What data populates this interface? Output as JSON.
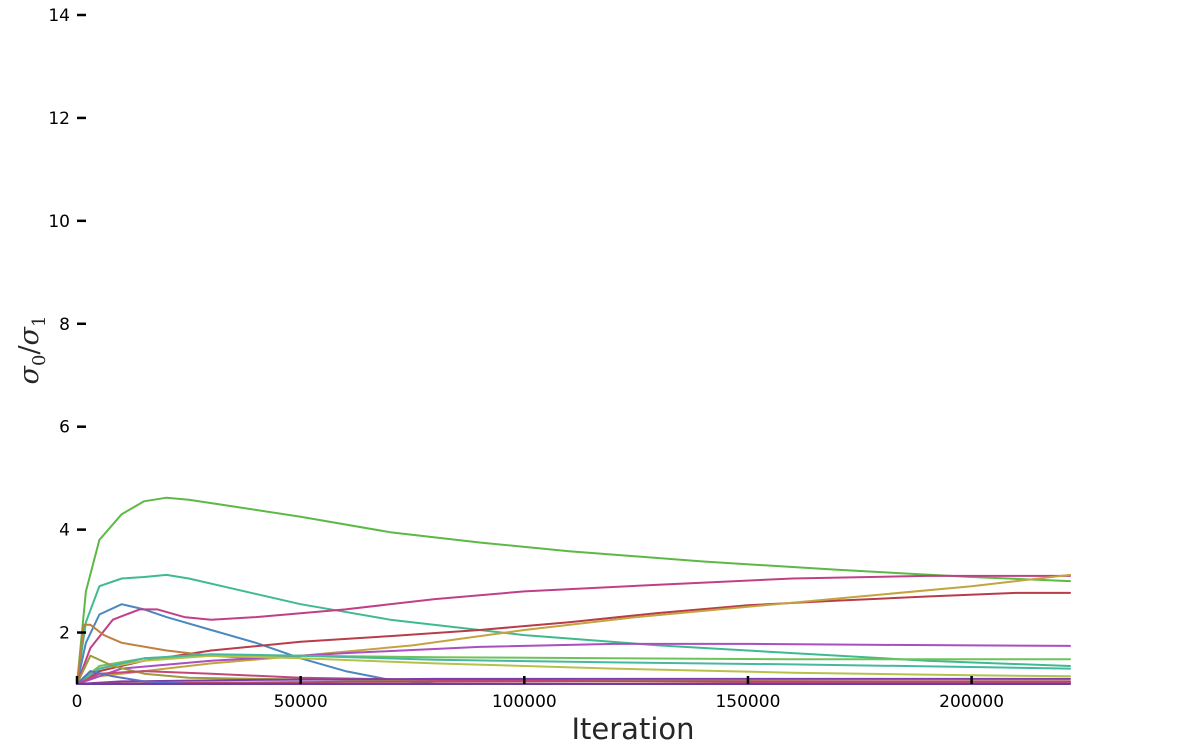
{
  "chart_data": {
    "type": "line",
    "title": "",
    "xlabel": "Iteration",
    "ylabel": "σ0/σ1",
    "ylabel_parts": {
      "sym": "σ",
      "sub0": "0",
      "slash": "/",
      "sub1": "1"
    },
    "xlim": [
      0,
      222000
    ],
    "ylim": [
      1,
      14
    ],
    "xticks": [
      0,
      50000,
      100000,
      150000,
      200000
    ],
    "xtick_labels": [
      "0",
      "50000",
      "100000",
      "150000",
      "200000"
    ],
    "yticks": [
      2,
      4,
      6,
      8,
      10,
      12,
      14
    ],
    "ytick_labels": [
      "2",
      "4",
      "6",
      "8",
      "10",
      "12",
      "14"
    ],
    "grid": false,
    "legend": "none",
    "series": [
      {
        "color": "#5cb946",
        "x": [
          0,
          2000,
          5000,
          10000,
          15000,
          20000,
          25000,
          35000,
          50000,
          70000,
          90000,
          110000,
          140000,
          170000,
          200000,
          222000
        ],
        "y": [
          1.0,
          2.8,
          3.8,
          4.3,
          4.55,
          4.62,
          4.58,
          4.45,
          4.25,
          3.95,
          3.75,
          3.58,
          3.38,
          3.22,
          3.08,
          3.0
        ]
      },
      {
        "color": "#3ebb8e",
        "x": [
          0,
          2000,
          5000,
          10000,
          15000,
          20000,
          25000,
          35000,
          50000,
          70000,
          100000,
          130000,
          160000,
          190000,
          222000
        ],
        "y": [
          1.0,
          2.2,
          2.9,
          3.05,
          3.08,
          3.12,
          3.05,
          2.85,
          2.55,
          2.25,
          1.95,
          1.75,
          1.6,
          1.45,
          1.35
        ]
      },
      {
        "color": "#4a88bd",
        "x": [
          0,
          2000,
          5000,
          10000,
          15000,
          20000,
          30000,
          40000,
          50000,
          60000,
          70000,
          80000
        ],
        "y": [
          1.0,
          1.8,
          2.35,
          2.55,
          2.45,
          2.3,
          2.05,
          1.8,
          1.5,
          1.25,
          1.08,
          1.0
        ]
      },
      {
        "color": "#c13f87",
        "x": [
          0,
          3000,
          8000,
          14000,
          18000,
          24000,
          30000,
          40000,
          60000,
          80000,
          100000,
          130000,
          160000,
          190000,
          222000
        ],
        "y": [
          1.0,
          1.7,
          2.25,
          2.45,
          2.45,
          2.3,
          2.25,
          2.3,
          2.45,
          2.65,
          2.8,
          2.93,
          3.05,
          3.1,
          3.1
        ]
      },
      {
        "color": "#b83d49",
        "x": [
          0,
          5000,
          15000,
          30000,
          50000,
          70000,
          90000,
          110000,
          130000,
          150000,
          170000,
          190000,
          210000,
          222000
        ],
        "y": [
          1.0,
          1.25,
          1.45,
          1.65,
          1.82,
          1.93,
          2.05,
          2.2,
          2.38,
          2.53,
          2.62,
          2.7,
          2.77,
          2.77
        ]
      },
      {
        "color": "#c4a43e",
        "x": [
          0,
          5000,
          15000,
          30000,
          50000,
          75000,
          100000,
          125000,
          150000,
          175000,
          200000,
          222000
        ],
        "y": [
          1.0,
          1.15,
          1.25,
          1.4,
          1.55,
          1.75,
          2.05,
          2.3,
          2.5,
          2.7,
          2.9,
          3.12
        ]
      },
      {
        "color": "#c07f3e",
        "x": [
          0,
          1500,
          3000,
          6000,
          10000,
          20000,
          30000,
          40000
        ],
        "y": [
          1.0,
          2.15,
          2.15,
          1.95,
          1.8,
          1.65,
          1.55,
          1.5
        ]
      },
      {
        "color": "#a94fbf",
        "x": [
          0,
          10000,
          30000,
          60000,
          90000,
          120000,
          150000,
          180000,
          222000
        ],
        "y": [
          1.0,
          1.3,
          1.45,
          1.6,
          1.72,
          1.78,
          1.78,
          1.76,
          1.74
        ]
      },
      {
        "color": "#6fc25a",
        "x": [
          0,
          5000,
          15000,
          30000,
          50000,
          80000,
          120000,
          160000,
          200000,
          222000
        ],
        "y": [
          1.0,
          1.35,
          1.5,
          1.55,
          1.55,
          1.52,
          1.5,
          1.48,
          1.48,
          1.48
        ]
      },
      {
        "color": "#b5c24a",
        "x": [
          0,
          5000,
          15000,
          30000,
          50000,
          80000,
          120000,
          160000,
          200000,
          222000
        ],
        "y": [
          1.0,
          1.3,
          1.45,
          1.55,
          1.5,
          1.4,
          1.3,
          1.22,
          1.17,
          1.15
        ]
      },
      {
        "color": "#46b8a0",
        "x": [
          0,
          5000,
          15000,
          30000,
          50000,
          80000,
          120000,
          160000,
          200000,
          222000
        ],
        "y": [
          1.0,
          1.3,
          1.5,
          1.58,
          1.55,
          1.47,
          1.42,
          1.38,
          1.33,
          1.3
        ]
      },
      {
        "color": "#9c9c3e",
        "x": [
          0,
          3000,
          8000,
          15000,
          25000,
          40000,
          60000,
          90000,
          130000,
          180000,
          222000
        ],
        "y": [
          1.0,
          1.55,
          1.35,
          1.2,
          1.12,
          1.1,
          1.08,
          1.07,
          1.06,
          1.05,
          1.05
        ]
      },
      {
        "color": "#c2487a",
        "x": [
          0,
          5000,
          15000,
          30000,
          50000,
          80000,
          120000,
          170000,
          222000
        ],
        "y": [
          1.0,
          1.2,
          1.25,
          1.2,
          1.12,
          1.08,
          1.05,
          1.03,
          1.02
        ]
      },
      {
        "color": "#7a3fa8",
        "x": [
          0,
          10000,
          40000,
          80000,
          130000,
          180000,
          222000
        ],
        "y": [
          1.0,
          1.05,
          1.08,
          1.1,
          1.1,
          1.1,
          1.1
        ]
      },
      {
        "color": "#b24a6a",
        "x": [
          0,
          20000,
          60000,
          120000,
          180000,
          222000
        ],
        "y": [
          1.0,
          1.02,
          1.04,
          1.05,
          1.05,
          1.05
        ]
      },
      {
        "color": "#5b6fc0",
        "x": [
          0,
          3000,
          8000,
          15000,
          25000
        ],
        "y": [
          1.0,
          1.25,
          1.15,
          1.05,
          1.0
        ]
      },
      {
        "color": "#6a3f9e",
        "x": [
          0,
          5000,
          30000,
          80000,
          150000,
          222000
        ],
        "y": [
          1.0,
          1.0,
          1.0,
          1.0,
          1.0,
          1.0
        ]
      }
    ]
  }
}
